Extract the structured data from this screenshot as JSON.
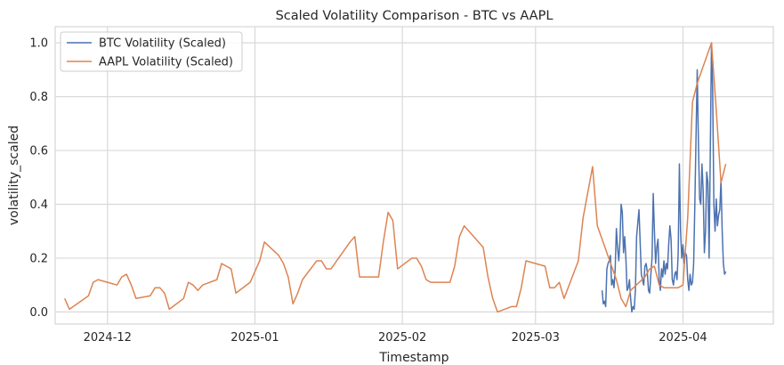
{
  "chart_data": {
    "type": "line",
    "title": "Scaled Volatility Comparison - BTC vs AAPL",
    "xlabel": "Timestamp",
    "ylabel": "volatility_scaled",
    "xlim": [
      "2024-11-20",
      "2025-04-20"
    ],
    "ylim": [
      -0.045,
      1.06
    ],
    "x_ticks": [
      "2024-12-01",
      "2025-01-01",
      "2025-02-01",
      "2025-03-01",
      "2025-04-01"
    ],
    "x_tick_labels": [
      "2024-12",
      "2025-01",
      "2025-02",
      "2025-03",
      "2025-04"
    ],
    "y_ticks": [
      0.0,
      0.2,
      0.4,
      0.6,
      0.8,
      1.0
    ],
    "y_tick_labels": [
      "0.0",
      "0.2",
      "0.4",
      "0.6",
      "0.8",
      "1.0"
    ],
    "grid": true,
    "legend_position": "top-left",
    "series": [
      {
        "name": "BTC Volatility (Scaled)",
        "color": "#4c72b0",
        "points": [
          [
            "2025-03-15T00:00",
            0.08
          ],
          [
            "2025-03-15T06:00",
            0.03
          ],
          [
            "2025-03-15T12:00",
            0.04
          ],
          [
            "2025-03-15T18:00",
            0.02
          ],
          [
            "2025-03-16T00:00",
            0.16
          ],
          [
            "2025-03-16T06:00",
            0.18
          ],
          [
            "2025-03-16T12:00",
            0.19
          ],
          [
            "2025-03-16T18:00",
            0.21
          ],
          [
            "2025-03-17T00:00",
            0.1
          ],
          [
            "2025-03-17T06:00",
            0.12
          ],
          [
            "2025-03-17T12:00",
            0.09
          ],
          [
            "2025-03-17T18:00",
            0.16
          ],
          [
            "2025-03-18T00:00",
            0.31
          ],
          [
            "2025-03-18T06:00",
            0.24
          ],
          [
            "2025-03-18T12:00",
            0.19
          ],
          [
            "2025-03-18T18:00",
            0.26
          ],
          [
            "2025-03-19T00:00",
            0.4
          ],
          [
            "2025-03-19T06:00",
            0.37
          ],
          [
            "2025-03-19T12:00",
            0.22
          ],
          [
            "2025-03-19T18:00",
            0.28
          ],
          [
            "2025-03-20T00:00",
            0.2
          ],
          [
            "2025-03-20T06:00",
            0.08
          ],
          [
            "2025-03-20T12:00",
            0.09
          ],
          [
            "2025-03-20T18:00",
            0.12
          ],
          [
            "2025-03-21T00:00",
            0.05
          ],
          [
            "2025-03-21T06:00",
            0.0
          ],
          [
            "2025-03-21T12:00",
            0.02
          ],
          [
            "2025-03-21T18:00",
            0.01
          ],
          [
            "2025-03-22T00:00",
            0.08
          ],
          [
            "2025-03-22T06:00",
            0.28
          ],
          [
            "2025-03-22T12:00",
            0.33
          ],
          [
            "2025-03-22T18:00",
            0.38
          ],
          [
            "2025-03-23T00:00",
            0.26
          ],
          [
            "2025-03-23T06:00",
            0.14
          ],
          [
            "2025-03-23T12:00",
            0.12
          ],
          [
            "2025-03-23T18:00",
            0.1
          ],
          [
            "2025-03-24T00:00",
            0.17
          ],
          [
            "2025-03-24T06:00",
            0.18
          ],
          [
            "2025-03-24T12:00",
            0.15
          ],
          [
            "2025-03-24T18:00",
            0.08
          ],
          [
            "2025-03-25T00:00",
            0.07
          ],
          [
            "2025-03-25T06:00",
            0.14
          ],
          [
            "2025-03-25T12:00",
            0.2
          ],
          [
            "2025-03-25T18:00",
            0.44
          ],
          [
            "2025-03-26T00:00",
            0.3
          ],
          [
            "2025-03-26T06:00",
            0.18
          ],
          [
            "2025-03-26T12:00",
            0.24
          ],
          [
            "2025-03-26T18:00",
            0.27
          ],
          [
            "2025-03-27T00:00",
            0.12
          ],
          [
            "2025-03-27T06:00",
            0.08
          ],
          [
            "2025-03-27T12:00",
            0.16
          ],
          [
            "2025-03-27T18:00",
            0.13
          ],
          [
            "2025-03-28T00:00",
            0.19
          ],
          [
            "2025-03-28T06:00",
            0.14
          ],
          [
            "2025-03-28T12:00",
            0.18
          ],
          [
            "2025-03-28T18:00",
            0.16
          ],
          [
            "2025-03-29T00:00",
            0.25
          ],
          [
            "2025-03-29T06:00",
            0.32
          ],
          [
            "2025-03-29T12:00",
            0.27
          ],
          [
            "2025-03-29T18:00",
            0.12
          ],
          [
            "2025-03-30T00:00",
            0.1
          ],
          [
            "2025-03-30T06:00",
            0.14
          ],
          [
            "2025-03-30T12:00",
            0.15
          ],
          [
            "2025-03-30T18:00",
            0.12
          ],
          [
            "2025-03-31T00:00",
            0.22
          ],
          [
            "2025-03-31T06:00",
            0.55
          ],
          [
            "2025-03-31T12:00",
            0.3
          ],
          [
            "2025-03-31T18:00",
            0.2
          ],
          [
            "2025-04-01T00:00",
            0.25
          ],
          [
            "2025-04-01T06:00",
            0.18
          ],
          [
            "2025-04-01T12:00",
            0.22
          ],
          [
            "2025-04-01T18:00",
            0.21
          ],
          [
            "2025-04-02T00:00",
            0.12
          ],
          [
            "2025-04-02T06:00",
            0.08
          ],
          [
            "2025-04-02T12:00",
            0.14
          ],
          [
            "2025-04-02T18:00",
            0.1
          ],
          [
            "2025-04-03T00:00",
            0.11
          ],
          [
            "2025-04-03T06:00",
            0.18
          ],
          [
            "2025-04-03T12:00",
            0.4
          ],
          [
            "2025-04-03T18:00",
            0.65
          ],
          [
            "2025-04-04T00:00",
            0.9
          ],
          [
            "2025-04-04T06:00",
            0.63
          ],
          [
            "2025-04-04T12:00",
            0.42
          ],
          [
            "2025-04-04T18:00",
            0.4
          ],
          [
            "2025-04-05T00:00",
            0.55
          ],
          [
            "2025-04-05T06:00",
            0.45
          ],
          [
            "2025-04-05T12:00",
            0.22
          ],
          [
            "2025-04-05T18:00",
            0.3
          ],
          [
            "2025-04-06T00:00",
            0.52
          ],
          [
            "2025-04-06T06:00",
            0.48
          ],
          [
            "2025-04-06T12:00",
            0.2
          ],
          [
            "2025-04-06T18:00",
            0.6
          ],
          [
            "2025-04-07T00:00",
            1.0
          ],
          [
            "2025-04-07T06:00",
            0.82
          ],
          [
            "2025-04-07T12:00",
            0.4
          ],
          [
            "2025-04-07T18:00",
            0.3
          ],
          [
            "2025-04-08T00:00",
            0.42
          ],
          [
            "2025-04-08T06:00",
            0.32
          ],
          [
            "2025-04-08T12:00",
            0.36
          ],
          [
            "2025-04-08T18:00",
            0.38
          ],
          [
            "2025-04-09T00:00",
            0.49
          ],
          [
            "2025-04-09T06:00",
            0.3
          ],
          [
            "2025-04-09T12:00",
            0.18
          ],
          [
            "2025-04-09T18:00",
            0.14
          ],
          [
            "2025-04-10T00:00",
            0.15
          ]
        ]
      },
      {
        "name": "AAPL Volatility (Scaled)",
        "color": "#dd8452",
        "points": [
          [
            "2024-11-22",
            0.05
          ],
          [
            "2024-11-23",
            0.01
          ],
          [
            "2024-11-27",
            0.06
          ],
          [
            "2024-11-28",
            0.11
          ],
          [
            "2024-11-29",
            0.12
          ],
          [
            "2024-12-01",
            0.11
          ],
          [
            "2024-12-03",
            0.1
          ],
          [
            "2024-12-04",
            0.13
          ],
          [
            "2024-12-05",
            0.14
          ],
          [
            "2024-12-06",
            0.1
          ],
          [
            "2024-12-07",
            0.05
          ],
          [
            "2024-12-10",
            0.06
          ],
          [
            "2024-12-11",
            0.09
          ],
          [
            "2024-12-12",
            0.09
          ],
          [
            "2024-12-13",
            0.07
          ],
          [
            "2024-12-14",
            0.01
          ],
          [
            "2024-12-17",
            0.05
          ],
          [
            "2024-12-18",
            0.11
          ],
          [
            "2024-12-19",
            0.1
          ],
          [
            "2024-12-20",
            0.08
          ],
          [
            "2024-12-21",
            0.1
          ],
          [
            "2024-12-24",
            0.12
          ],
          [
            "2024-12-25",
            0.18
          ],
          [
            "2024-12-27",
            0.16
          ],
          [
            "2024-12-28",
            0.07
          ],
          [
            "2024-12-31",
            0.11
          ],
          [
            "2025-01-02",
            0.19
          ],
          [
            "2025-01-03",
            0.26
          ],
          [
            "2025-01-06",
            0.21
          ],
          [
            "2025-01-07",
            0.18
          ],
          [
            "2025-01-08",
            0.13
          ],
          [
            "2025-01-09",
            0.03
          ],
          [
            "2025-01-10",
            0.07
          ],
          [
            "2025-01-11",
            0.12
          ],
          [
            "2025-01-14",
            0.19
          ],
          [
            "2025-01-15",
            0.19
          ],
          [
            "2025-01-16",
            0.16
          ],
          [
            "2025-01-17",
            0.16
          ],
          [
            "2025-01-21",
            0.26
          ],
          [
            "2025-01-22",
            0.28
          ],
          [
            "2025-01-23",
            0.13
          ],
          [
            "2025-01-24",
            0.13
          ],
          [
            "2025-01-27",
            0.13
          ],
          [
            "2025-01-28",
            0.26
          ],
          [
            "2025-01-29",
            0.37
          ],
          [
            "2025-01-30",
            0.34
          ],
          [
            "2025-01-31",
            0.16
          ],
          [
            "2025-02-03",
            0.2
          ],
          [
            "2025-02-04",
            0.2
          ],
          [
            "2025-02-05",
            0.17
          ],
          [
            "2025-02-06",
            0.12
          ],
          [
            "2025-02-07",
            0.11
          ],
          [
            "2025-02-10",
            0.11
          ],
          [
            "2025-02-11",
            0.11
          ],
          [
            "2025-02-12",
            0.17
          ],
          [
            "2025-02-13",
            0.28
          ],
          [
            "2025-02-14",
            0.32
          ],
          [
            "2025-02-18",
            0.24
          ],
          [
            "2025-02-19",
            0.13
          ],
          [
            "2025-02-20",
            0.05
          ],
          [
            "2025-02-21",
            0.0
          ],
          [
            "2025-02-24",
            0.02
          ],
          [
            "2025-02-25",
            0.02
          ],
          [
            "2025-02-26",
            0.09
          ],
          [
            "2025-02-27",
            0.19
          ],
          [
            "2025-03-03",
            0.17
          ],
          [
            "2025-03-04",
            0.09
          ],
          [
            "2025-03-05",
            0.09
          ],
          [
            "2025-03-06",
            0.11
          ],
          [
            "2025-03-07",
            0.05
          ],
          [
            "2025-03-10",
            0.19
          ],
          [
            "2025-03-11",
            0.35
          ],
          [
            "2025-03-13",
            0.54
          ],
          [
            "2025-03-14",
            0.32
          ],
          [
            "2025-03-17",
            0.17
          ],
          [
            "2025-03-18",
            0.12
          ],
          [
            "2025-03-19",
            0.05
          ],
          [
            "2025-03-20",
            0.02
          ],
          [
            "2025-03-21",
            0.08
          ],
          [
            "2025-03-24",
            0.13
          ],
          [
            "2025-03-25",
            0.16
          ],
          [
            "2025-03-26",
            0.17
          ],
          [
            "2025-03-27",
            0.1
          ],
          [
            "2025-03-28",
            0.09
          ],
          [
            "2025-03-31",
            0.09
          ],
          [
            "2025-04-01",
            0.1
          ],
          [
            "2025-04-02",
            0.35
          ],
          [
            "2025-04-03",
            0.78
          ],
          [
            "2025-04-04",
            0.85
          ],
          [
            "2025-04-07",
            1.0
          ],
          [
            "2025-04-08",
            0.75
          ],
          [
            "2025-04-09",
            0.48
          ],
          [
            "2025-04-10",
            0.55
          ]
        ]
      }
    ]
  }
}
